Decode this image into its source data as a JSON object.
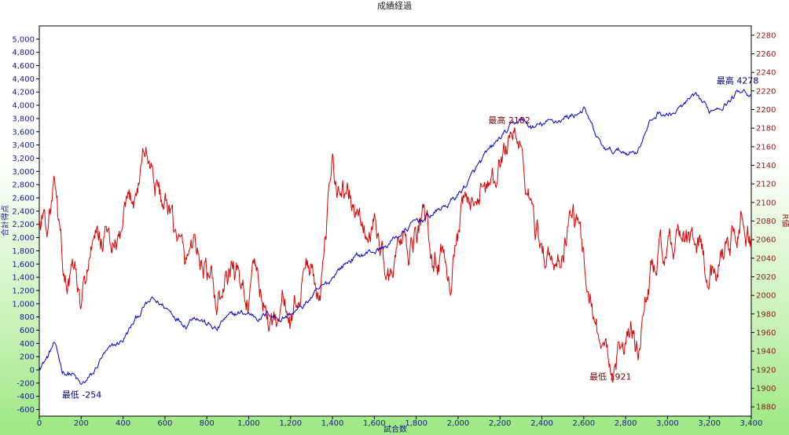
{
  "chart_data": {
    "type": "line",
    "title": "成績経過",
    "xlabel": "試合数",
    "ylabel_left": "合計得点",
    "ylabel_right": "R値",
    "xlim": [
      0,
      3400
    ],
    "ylim_left": [
      -700,
      5200
    ],
    "ylim_right": [
      1870,
      2290
    ],
    "x_ticks": [
      0,
      200,
      400,
      600,
      800,
      1000,
      1200,
      1400,
      1600,
      1800,
      2000,
      2200,
      2400,
      2600,
      2800,
      3000,
      3200,
      3400
    ],
    "x_tick_labels": [
      "0",
      "200",
      "400",
      "600",
      "800",
      "1,000",
      "1,200",
      "1,400",
      "1,600",
      "1,800",
      "2,000",
      "2,200",
      "2,400",
      "2,600",
      "2,800",
      "3,000",
      "3,200",
      "3,400"
    ],
    "left_ticks": [
      -600,
      -400,
      -200,
      0,
      200,
      400,
      600,
      800,
      1000,
      1200,
      1400,
      1600,
      1800,
      2000,
      2200,
      2400,
      2600,
      2800,
      3000,
      3200,
      3400,
      3600,
      3800,
      4000,
      4200,
      4400,
      4600,
      4800,
      5000
    ],
    "left_tick_labels": [
      "-600",
      "-400",
      "-200",
      "0",
      "200",
      "400",
      "600",
      "800",
      "1,000",
      "1,200",
      "1,400",
      "1,600",
      "1,800",
      "2,000",
      "2,200",
      "2,400",
      "2,600",
      "2,800",
      "3,000",
      "3,200",
      "3,400",
      "3,600",
      "3,800",
      "4,000",
      "4,200",
      "4,400",
      "4,600",
      "4,800",
      "5,000"
    ],
    "right_ticks": [
      1880,
      1900,
      1920,
      1940,
      1960,
      1980,
      2000,
      2020,
      2040,
      2060,
      2080,
      2100,
      2120,
      2140,
      2160,
      2180,
      2200,
      2220,
      2240,
      2260,
      2280
    ],
    "right_tick_labels": [
      "1880",
      "1900",
      "1920",
      "1940",
      "1960",
      "1980",
      "2000",
      "2020",
      "2040",
      "2060",
      "2080",
      "2100",
      "2120",
      "2140",
      "2160",
      "2180",
      "2200",
      "2220",
      "2240",
      "2260",
      "2280"
    ],
    "grid": false,
    "series": [
      {
        "axis": "left",
        "color": "#0000cc",
        "points": [
          [
            0,
            50
          ],
          [
            40,
            200
          ],
          [
            70,
            400
          ],
          [
            110,
            -20
          ],
          [
            160,
            -60
          ],
          [
            200,
            -254
          ],
          [
            260,
            -60
          ],
          [
            300,
            200
          ],
          [
            340,
            300
          ],
          [
            400,
            450
          ],
          [
            460,
            750
          ],
          [
            500,
            950
          ],
          [
            540,
            1050
          ],
          [
            600,
            950
          ],
          [
            640,
            850
          ],
          [
            700,
            700
          ],
          [
            740,
            850
          ],
          [
            800,
            700
          ],
          [
            850,
            600
          ],
          [
            880,
            750
          ],
          [
            950,
            850
          ],
          [
            1000,
            850
          ],
          [
            1050,
            800
          ],
          [
            1100,
            850
          ],
          [
            1150,
            780
          ],
          [
            1200,
            850
          ],
          [
            1260,
            950
          ],
          [
            1300,
            1100
          ],
          [
            1340,
            1200
          ],
          [
            1380,
            1300
          ],
          [
            1420,
            1500
          ],
          [
            1460,
            1600
          ],
          [
            1500,
            1700
          ],
          [
            1550,
            1750
          ],
          [
            1600,
            1800
          ],
          [
            1650,
            1850
          ],
          [
            1700,
            2000
          ],
          [
            1750,
            2100
          ],
          [
            1800,
            2250
          ],
          [
            1850,
            2300
          ],
          [
            1900,
            2400
          ],
          [
            1950,
            2500
          ],
          [
            2000,
            2650
          ],
          [
            2050,
            2850
          ],
          [
            2100,
            3100
          ],
          [
            2150,
            3300
          ],
          [
            2200,
            3500
          ],
          [
            2250,
            3650
          ],
          [
            2300,
            3800
          ],
          [
            2330,
            3700
          ],
          [
            2360,
            3650
          ],
          [
            2400,
            3700
          ],
          [
            2450,
            3750
          ],
          [
            2500,
            3800
          ],
          [
            2550,
            3850
          ],
          [
            2600,
            3950
          ],
          [
            2640,
            3650
          ],
          [
            2680,
            3400
          ],
          [
            2720,
            3300
          ],
          [
            2760,
            3300
          ],
          [
            2800,
            3300
          ],
          [
            2850,
            3300
          ],
          [
            2880,
            3500
          ],
          [
            2920,
            3750
          ],
          [
            2960,
            3900
          ],
          [
            3000,
            3850
          ],
          [
            3040,
            3900
          ],
          [
            3080,
            4000
          ],
          [
            3120,
            4100
          ],
          [
            3160,
            4050
          ],
          [
            3200,
            3900
          ],
          [
            3240,
            4000
          ],
          [
            3280,
            4050
          ],
          [
            3320,
            4150
          ],
          [
            3360,
            4278
          ],
          [
            3400,
            4150
          ]
        ]
      },
      {
        "axis": "right",
        "color": "#dd0000",
        "points": [
          [
            0,
            2075
          ],
          [
            20,
            2085
          ],
          [
            40,
            2080
          ],
          [
            70,
            2115
          ],
          [
            100,
            2050
          ],
          [
            130,
            2010
          ],
          [
            170,
            2025
          ],
          [
            200,
            1975
          ],
          [
            240,
            2045
          ],
          [
            280,
            2055
          ],
          [
            320,
            2065
          ],
          [
            370,
            2045
          ],
          [
            420,
            2085
          ],
          [
            470,
            2120
          ],
          [
            500,
            2160
          ],
          [
            540,
            2135
          ],
          [
            580,
            2105
          ],
          [
            620,
            2080
          ],
          [
            660,
            2055
          ],
          [
            700,
            2030
          ],
          [
            740,
            2065
          ],
          [
            780,
            2030
          ],
          [
            820,
            2010
          ],
          [
            850,
            1985
          ],
          [
            880,
            2000
          ],
          [
            920,
            2030
          ],
          [
            960,
            2010
          ],
          [
            1000,
            2000
          ],
          [
            1040,
            2020
          ],
          [
            1080,
            1980
          ],
          [
            1120,
            1965
          ],
          [
            1160,
            2000
          ],
          [
            1200,
            1970
          ],
          [
            1240,
            2000
          ],
          [
            1280,
            2040
          ],
          [
            1320,
            2010
          ],
          [
            1360,
            2030
          ],
          [
            1400,
            2140
          ],
          [
            1440,
            2115
          ],
          [
            1480,
            2105
          ],
          [
            1520,
            2080
          ],
          [
            1560,
            2065
          ],
          [
            1600,
            2075
          ],
          [
            1640,
            2045
          ],
          [
            1680,
            2015
          ],
          [
            1720,
            2060
          ],
          [
            1760,
            2035
          ],
          [
            1800,
            2060
          ],
          [
            1840,
            2090
          ],
          [
            1880,
            2030
          ],
          [
            1920,
            2045
          ],
          [
            1960,
            2025
          ],
          [
            2000,
            2060
          ],
          [
            2040,
            2100
          ],
          [
            2080,
            2080
          ],
          [
            2120,
            2130
          ],
          [
            2160,
            2110
          ],
          [
            2200,
            2140
          ],
          [
            2240,
            2170
          ],
          [
            2270,
            2182
          ],
          [
            2310,
            2140
          ],
          [
            2350,
            2090
          ],
          [
            2390,
            2060
          ],
          [
            2430,
            2040
          ],
          [
            2470,
            2025
          ],
          [
            2510,
            2060
          ],
          [
            2550,
            2090
          ],
          [
            2590,
            2050
          ],
          [
            2630,
            2010
          ],
          [
            2660,
            1975
          ],
          [
            2700,
            1935
          ],
          [
            2730,
            1921
          ],
          [
            2760,
            1940
          ],
          [
            2800,
            1950
          ],
          [
            2840,
            1960
          ],
          [
            2860,
            1940
          ],
          [
            2880,
            1980
          ],
          [
            2920,
            2025
          ],
          [
            2960,
            2045
          ],
          [
            3000,
            2040
          ],
          [
            3040,
            2060
          ],
          [
            3080,
            2055
          ],
          [
            3120,
            2050
          ],
          [
            3160,
            2055
          ],
          [
            3200,
            2010
          ],
          [
            3240,
            2040
          ],
          [
            3280,
            2060
          ],
          [
            3320,
            2070
          ],
          [
            3350,
            2090
          ],
          [
            3380,
            2060
          ],
          [
            3400,
            2060
          ]
        ]
      }
    ],
    "annotations": [
      {
        "text": "最高 4278",
        "color": "#00006e",
        "axis": "left",
        "x": 3360,
        "y": 4278,
        "place": "above-left"
      },
      {
        "text": "最低 -254",
        "color": "#00006e",
        "axis": "left",
        "x": 200,
        "y": -254,
        "place": "left"
      },
      {
        "text": "最高 2182",
        "color": "#7a0000",
        "axis": "right",
        "x": 2270,
        "y": 2182,
        "place": "above-left"
      },
      {
        "text": "最低 1921",
        "color": "#7a0000",
        "axis": "right",
        "x": 2730,
        "y": 1921,
        "place": "left"
      }
    ]
  }
}
